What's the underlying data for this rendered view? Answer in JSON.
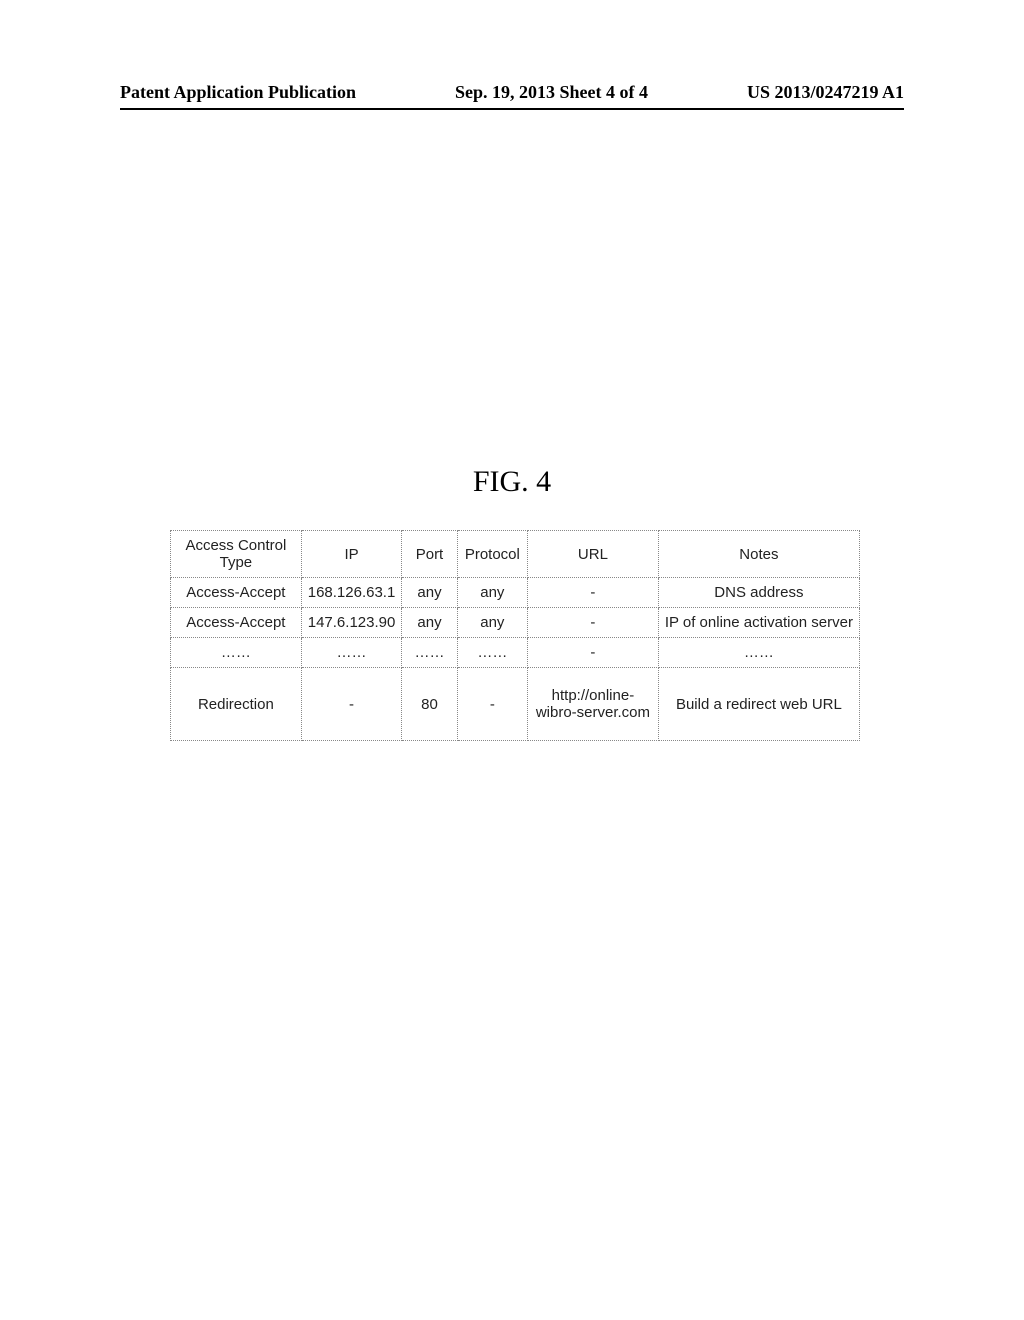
{
  "header": {
    "left": "Patent Application Publication",
    "center": "Sep. 19, 2013  Sheet 4 of 4",
    "right": "US 2013/0247219 A1"
  },
  "figure": {
    "caption": "FIG. 4"
  },
  "table": {
    "columns": [
      "Access Control Type",
      "IP",
      "Port",
      "Protocol",
      "URL",
      "Notes"
    ],
    "rows": [
      [
        "Access-Accept",
        "168.126.63.1",
        "any",
        "any",
        "-",
        "DNS address"
      ],
      [
        "Access-Accept",
        "147.6.123.90",
        "any",
        "any",
        "-",
        "IP of online activation server"
      ],
      [
        "……",
        "……",
        "……",
        "……",
        "-",
        "……"
      ],
      [
        "Redirection",
        "-",
        "80",
        "-",
        "http://online-wibro-server.com",
        "Build a redirect web URL"
      ]
    ]
  }
}
